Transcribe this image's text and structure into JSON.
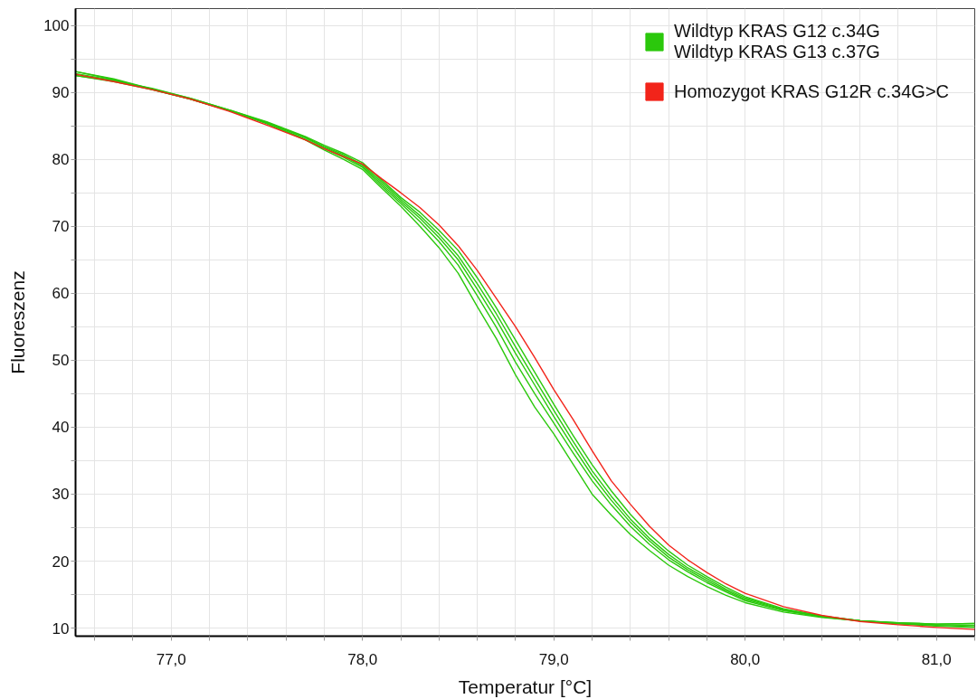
{
  "chart_data": {
    "type": "line",
    "xlabel": "Temperatur [°C]",
    "ylabel": "Fluoreszenz",
    "x": [
      76.5,
      76.7,
      76.9,
      77.1,
      77.3,
      77.5,
      77.7,
      77.8,
      77.9,
      78.0,
      78.1,
      78.2,
      78.3,
      78.4,
      78.5,
      78.6,
      78.7,
      78.8,
      78.9,
      79.0,
      79.1,
      79.2,
      79.3,
      79.4,
      79.5,
      79.6,
      79.7,
      79.8,
      79.9,
      80.0,
      80.2,
      80.4,
      80.6,
      80.8,
      81.0,
      81.2
    ],
    "series": [
      {
        "name": "Wildtyp KRAS G12 c.34G\nWildtyp KRAS G13 c.37G",
        "color": "#2bc80c",
        "values": [
          92.5,
          91.7,
          90.6,
          89.1,
          87.4,
          85.6,
          83.4,
          82.1,
          80.9,
          79.5,
          76.9,
          74.3,
          72.1,
          69.4,
          66.4,
          62.3,
          57.8,
          53.0,
          48.2,
          43.4,
          38.8,
          34.4,
          30.5,
          27.0,
          24.0,
          21.5,
          19.4,
          17.7,
          16.1,
          14.7,
          12.9,
          11.8,
          11.1,
          10.7,
          10.4,
          10.2
        ]
      },
      {
        "color": "#2bc80c",
        "values": [
          93.1,
          92.0,
          90.5,
          89.1,
          87.4,
          85.5,
          83.3,
          81.9,
          80.7,
          79.2,
          76.6,
          74.0,
          71.6,
          68.8,
          65.6,
          61.4,
          56.9,
          52.0,
          47.2,
          42.5,
          37.9,
          33.5,
          29.7,
          26.3,
          23.4,
          21.0,
          19.0,
          17.4,
          15.8,
          14.5,
          12.8,
          11.8,
          11.1,
          10.7,
          10.3,
          10.1
        ]
      },
      {
        "color": "#2bc80c",
        "values": [
          92.8,
          91.8,
          90.5,
          89.0,
          87.3,
          85.5,
          83.2,
          81.8,
          80.5,
          79.0,
          76.3,
          73.7,
          71.2,
          68.3,
          65.0,
          60.6,
          56.0,
          51.0,
          46.3,
          41.6,
          37.1,
          32.8,
          29.1,
          25.8,
          23.0,
          20.6,
          18.7,
          17.1,
          15.6,
          14.3,
          12.7,
          11.7,
          11.1,
          10.7,
          10.5,
          10.4
        ]
      },
      {
        "color": "#2bc80c",
        "values": [
          92.5,
          91.6,
          90.4,
          89.0,
          87.3,
          85.4,
          83.0,
          81.6,
          80.3,
          78.8,
          76.0,
          73.4,
          70.7,
          67.7,
          64.2,
          59.6,
          54.9,
          49.7,
          45.0,
          40.6,
          36.2,
          32.0,
          28.4,
          25.2,
          22.5,
          20.2,
          18.4,
          16.8,
          15.4,
          14.1,
          12.6,
          11.7,
          11.1,
          10.8,
          10.6,
          10.7
        ]
      },
      {
        "color": "#2bc80c",
        "values": [
          93.1,
          91.9,
          90.4,
          89.0,
          87.3,
          85.3,
          82.9,
          81.4,
          80.0,
          78.5,
          75.7,
          73.0,
          70.0,
          66.8,
          63.0,
          58.0,
          53.2,
          47.8,
          43.0,
          39.0,
          34.5,
          30.0,
          26.9,
          24.0,
          21.6,
          19.4,
          17.7,
          16.2,
          14.9,
          13.8,
          12.4,
          11.6,
          11.1,
          10.8,
          10.6,
          10.7
        ]
      },
      {
        "name": "Homozygot KRAS G12R c.34G>C",
        "color": "#f2241a",
        "values": [
          92.7,
          91.6,
          90.4,
          89.0,
          87.2,
          85.1,
          82.9,
          81.6,
          80.4,
          79.3,
          77.1,
          75.0,
          72.8,
          70.2,
          67.1,
          63.4,
          59.2,
          55.0,
          50.4,
          45.6,
          41.2,
          36.5,
          32.0,
          28.5,
          25.2,
          22.4,
          20.2,
          18.3,
          16.6,
          15.2,
          13.2,
          11.9,
          11.0,
          10.5,
          10.1,
          9.8
        ]
      }
    ],
    "xlim": [
      76.5,
      81.2
    ],
    "ylim": [
      8.8,
      102.5
    ],
    "xticks": [
      {
        "value": 76.6,
        "label": null
      },
      {
        "value": 76.8,
        "label": null
      },
      {
        "value": 77.0,
        "label": "77,0"
      },
      {
        "value": 77.2,
        "label": null
      },
      {
        "value": 77.4,
        "label": null
      },
      {
        "value": 77.6,
        "label": null
      },
      {
        "value": 77.8,
        "label": null
      },
      {
        "value": 78.0,
        "label": "78,0"
      },
      {
        "value": 78.2,
        "label": null
      },
      {
        "value": 78.4,
        "label": null
      },
      {
        "value": 78.6,
        "label": null
      },
      {
        "value": 78.8,
        "label": null
      },
      {
        "value": 79.0,
        "label": "79,0"
      },
      {
        "value": 79.2,
        "label": null
      },
      {
        "value": 79.4,
        "label": null
      },
      {
        "value": 79.6,
        "label": null
      },
      {
        "value": 79.8,
        "label": null
      },
      {
        "value": 80.0,
        "label": "80,0"
      },
      {
        "value": 80.2,
        "label": null
      },
      {
        "value": 80.4,
        "label": null
      },
      {
        "value": 80.6,
        "label": null
      },
      {
        "value": 80.8,
        "label": null
      },
      {
        "value": 81.0,
        "label": "81,0"
      },
      {
        "value": 81.2,
        "label": null
      }
    ],
    "yticks": [
      10,
      {
        "value": 15,
        "label": null
      },
      20,
      {
        "value": 25,
        "label": null
      },
      30,
      {
        "value": 35,
        "label": null
      },
      40,
      {
        "value": 45,
        "label": null
      },
      50,
      {
        "value": 55,
        "label": null
      },
      60,
      {
        "value": 65,
        "label": null
      },
      70,
      {
        "value": 75,
        "label": null
      },
      80,
      {
        "value": 85,
        "label": null
      },
      90,
      {
        "value": 95,
        "label": null
      },
      100
    ],
    "grid": true,
    "legend": "top right",
    "line_style": "solid"
  }
}
